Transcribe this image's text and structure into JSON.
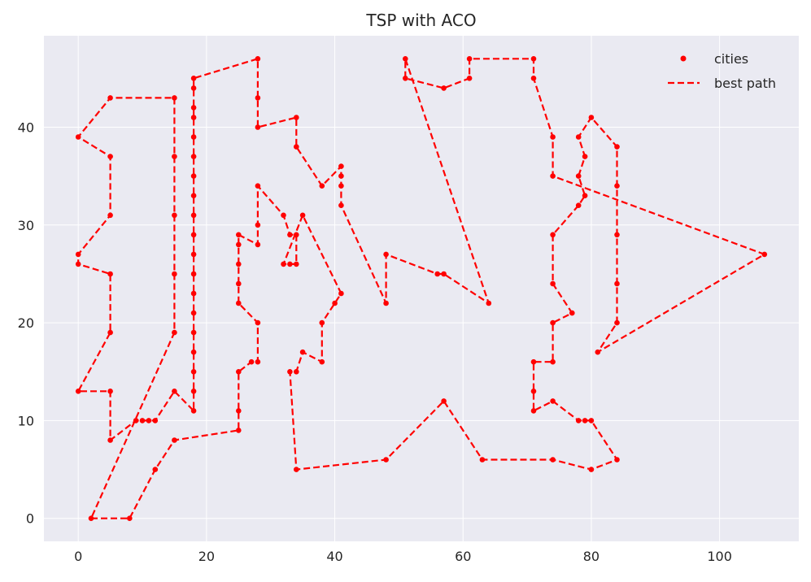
{
  "chart_data": {
    "type": "scatter",
    "title": "TSP with ACO",
    "xlabel": "",
    "ylabel": "",
    "xlim": [
      -5.35,
      112.35
    ],
    "ylim": [
      -2.35,
      49.35
    ],
    "x_ticks": [
      0,
      20,
      40,
      60,
      80,
      100
    ],
    "y_ticks": [
      0,
      10,
      20,
      30,
      40
    ],
    "grid": true,
    "legend_position": "top-right",
    "colors": {
      "background": "#eaeaf2",
      "series": "#ff0000",
      "grid": "#ffffff",
      "text": "#262626"
    },
    "series": [
      {
        "name": "cities",
        "style": "markers"
      },
      {
        "name": "best path",
        "style": "dashed-line"
      }
    ],
    "path": [
      [
        2,
        0
      ],
      [
        8,
        0
      ],
      [
        12,
        5
      ],
      [
        15,
        8
      ],
      [
        25,
        9
      ],
      [
        25,
        11
      ],
      [
        25,
        15
      ],
      [
        27,
        16
      ],
      [
        28,
        16
      ],
      [
        28,
        20
      ],
      [
        25,
        22
      ],
      [
        25,
        24
      ],
      [
        25,
        26
      ],
      [
        25,
        28
      ],
      [
        25,
        29
      ],
      [
        28,
        28
      ],
      [
        28,
        30
      ],
      [
        28,
        34
      ],
      [
        32,
        31
      ],
      [
        33,
        29
      ],
      [
        34,
        29
      ],
      [
        34,
        26
      ],
      [
        33,
        26
      ],
      [
        32,
        26
      ],
      [
        35,
        31
      ],
      [
        41,
        23
      ],
      [
        40,
        22
      ],
      [
        38,
        20
      ],
      [
        38,
        16
      ],
      [
        35,
        17
      ],
      [
        34,
        15
      ],
      [
        33,
        15
      ],
      [
        34,
        5
      ],
      [
        48,
        6
      ],
      [
        57,
        12
      ],
      [
        63,
        6
      ],
      [
        74,
        6
      ],
      [
        80,
        5
      ],
      [
        84,
        6
      ],
      [
        80,
        10
      ],
      [
        79,
        10
      ],
      [
        78,
        10
      ],
      [
        74,
        12
      ],
      [
        71,
        11
      ],
      [
        71,
        13
      ],
      [
        71,
        16
      ],
      [
        74,
        16
      ],
      [
        74,
        20
      ],
      [
        77,
        21
      ],
      [
        74,
        24
      ],
      [
        74,
        29
      ],
      [
        78,
        32
      ],
      [
        79,
        33
      ],
      [
        78,
        35
      ],
      [
        79,
        37
      ],
      [
        78,
        39
      ],
      [
        80,
        41
      ],
      [
        84,
        38
      ],
      [
        84,
        34
      ],
      [
        84,
        29
      ],
      [
        84,
        24
      ],
      [
        84,
        20
      ],
      [
        81,
        17
      ],
      [
        107,
        27
      ],
      [
        74,
        35
      ],
      [
        74,
        39
      ],
      [
        71,
        45
      ],
      [
        71,
        47
      ],
      [
        61,
        47
      ],
      [
        61,
        45
      ],
      [
        57,
        44
      ],
      [
        51,
        45
      ],
      [
        51,
        47
      ],
      [
        64,
        22
      ],
      [
        57,
        25
      ],
      [
        56,
        25
      ],
      [
        48,
        27
      ],
      [
        48,
        22
      ],
      [
        41,
        32
      ],
      [
        41,
        34
      ],
      [
        41,
        35
      ],
      [
        41,
        36
      ],
      [
        38,
        34
      ],
      [
        34,
        38
      ],
      [
        34,
        41
      ],
      [
        28,
        40
      ],
      [
        28,
        43
      ],
      [
        28,
        47
      ],
      [
        18,
        45
      ],
      [
        18,
        44
      ],
      [
        18,
        42
      ],
      [
        18,
        41
      ],
      [
        18,
        39
      ],
      [
        18,
        37
      ],
      [
        18,
        35
      ],
      [
        18,
        33
      ],
      [
        18,
        31
      ],
      [
        18,
        29
      ],
      [
        18,
        27
      ],
      [
        18,
        25
      ],
      [
        18,
        23
      ],
      [
        18,
        21
      ],
      [
        18,
        19
      ],
      [
        18,
        17
      ],
      [
        18,
        15
      ],
      [
        18,
        13
      ],
      [
        18,
        11
      ],
      [
        15,
        13
      ],
      [
        12,
        10
      ],
      [
        11,
        10
      ],
      [
        10,
        10
      ],
      [
        9,
        10
      ],
      [
        5,
        8
      ],
      [
        5,
        13
      ],
      [
        0,
        13
      ],
      [
        5,
        19
      ],
      [
        5,
        25
      ],
      [
        0,
        26
      ],
      [
        0,
        27
      ],
      [
        5,
        31
      ],
      [
        5,
        37
      ],
      [
        0,
        39
      ],
      [
        5,
        43
      ],
      [
        15,
        43
      ],
      [
        15,
        37
      ],
      [
        15,
        31
      ],
      [
        15,
        25
      ],
      [
        15,
        19
      ],
      [
        2,
        0
      ]
    ]
  }
}
